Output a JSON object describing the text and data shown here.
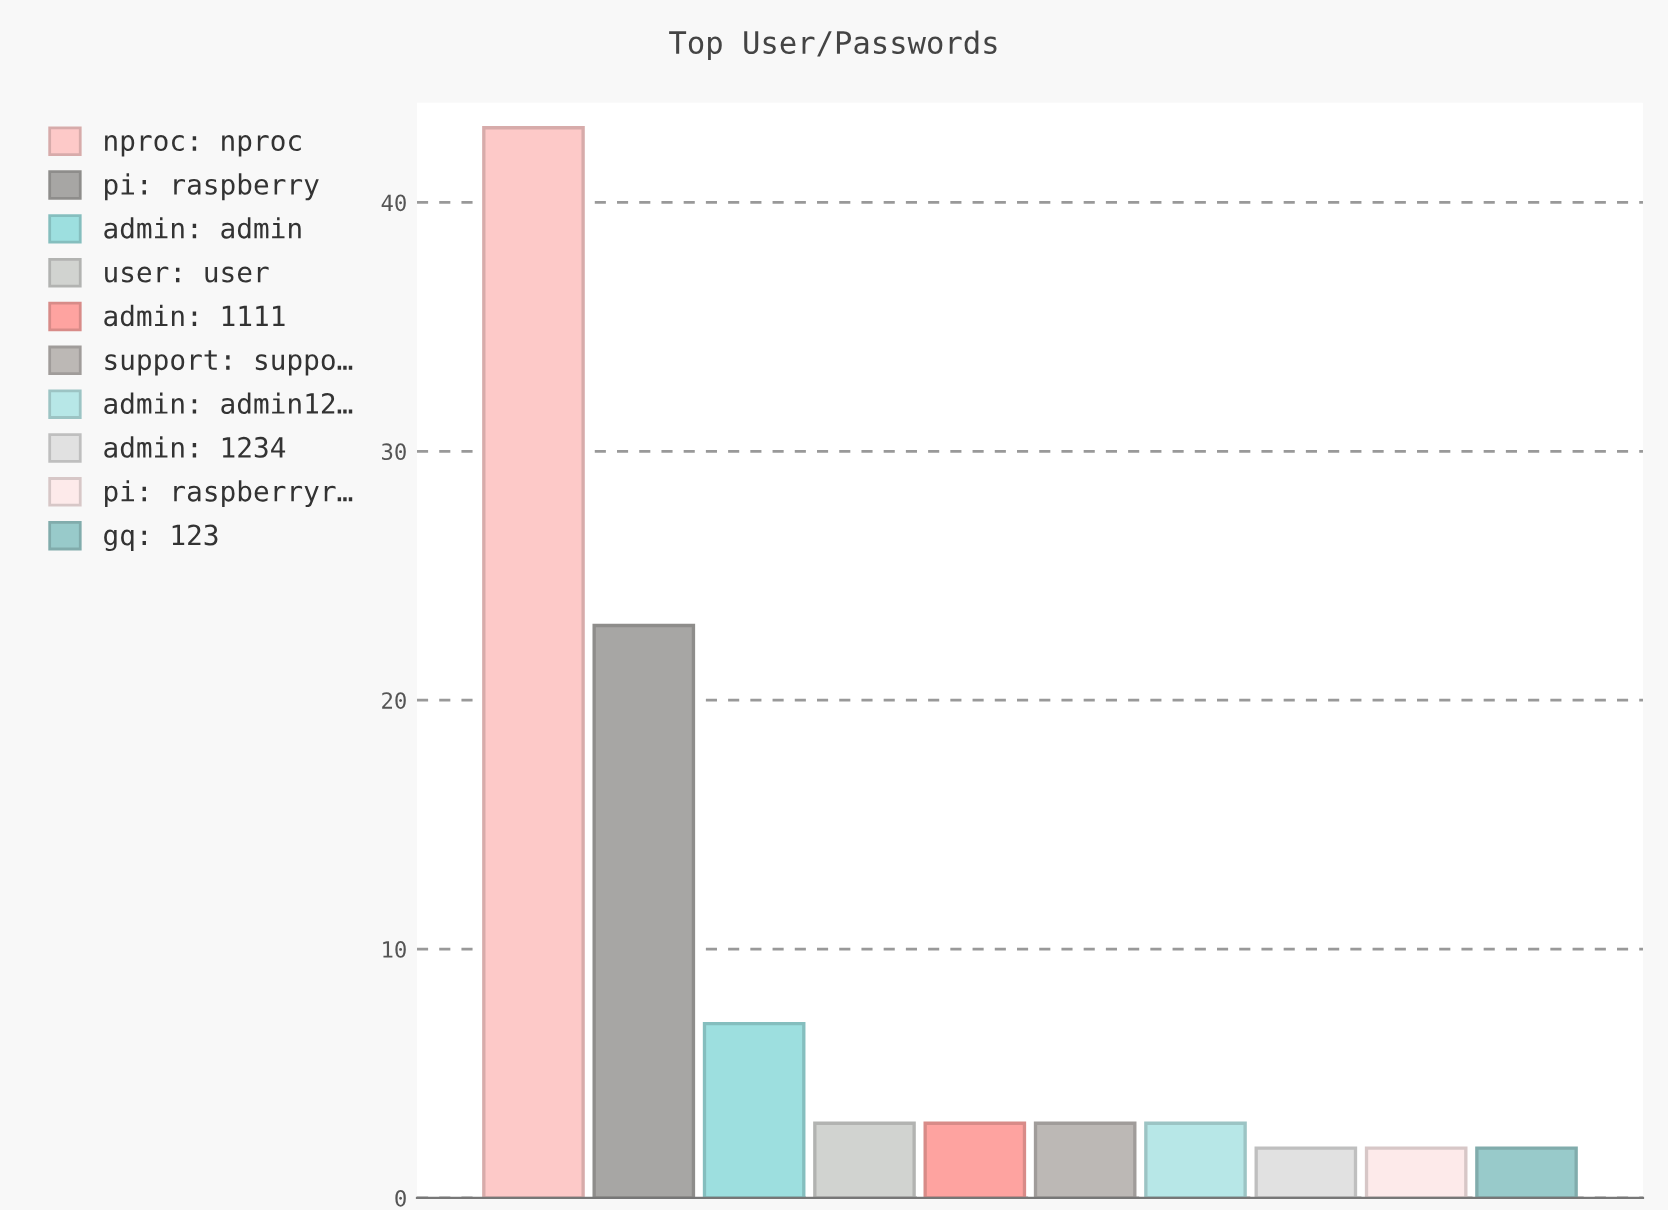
{
  "chart_data": {
    "type": "bar",
    "title": "Top User/Passwords",
    "categories": [
      null
    ],
    "series": [
      {
        "name": "nproc: nproc",
        "color": "#fdc9c8",
        "values": [
          43
        ]
      },
      {
        "name": "pi: raspberry",
        "color": "#a7a6a4",
        "values": [
          23
        ]
      },
      {
        "name": "admin: admin",
        "color": "#9ddfdf",
        "values": [
          7
        ]
      },
      {
        "name": "user: user",
        "color": "#d1d3d0",
        "values": [
          3
        ]
      },
      {
        "name": "admin: 1111",
        "color": "#fea3a0",
        "values": [
          3
        ]
      },
      {
        "name": "support: suppo…",
        "color": "#bcb8b5",
        "values": [
          3
        ]
      },
      {
        "name": "admin: admin12…",
        "color": "#b7e7e7",
        "values": [
          3
        ]
      },
      {
        "name": "admin: 1234",
        "color": "#e1e1e1",
        "values": [
          2
        ]
      },
      {
        "name": "pi: raspberryr…",
        "color": "#fdeaea",
        "values": [
          2
        ]
      },
      {
        "name": "gq: 123",
        "color": "#98caca",
        "values": [
          2
        ]
      }
    ],
    "ylim": [
      0,
      44
    ],
    "yticks": [
      0,
      10,
      20,
      30,
      40
    ],
    "grid": "y",
    "line_style": "dashed",
    "legend": "left"
  }
}
